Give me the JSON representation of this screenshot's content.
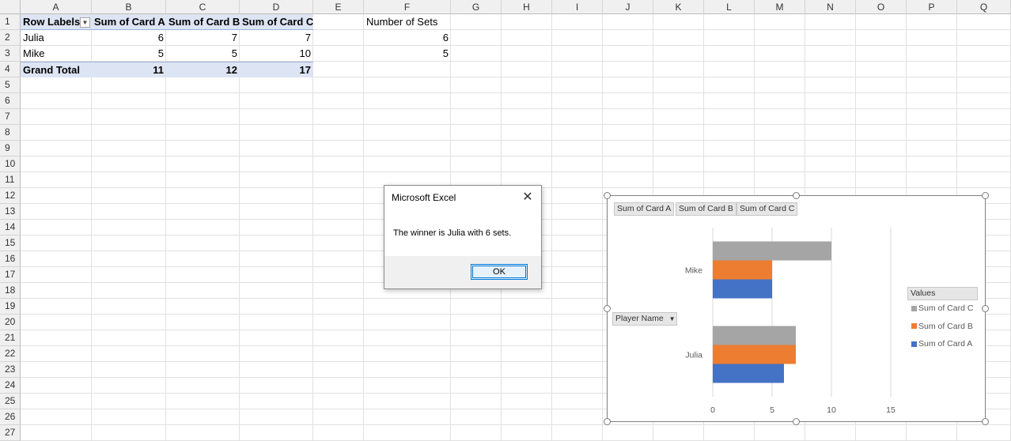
{
  "columns": [
    "A",
    "B",
    "C",
    "D",
    "E",
    "F",
    "G",
    "H",
    "I",
    "J",
    "K",
    "L",
    "M",
    "N",
    "O",
    "P",
    "Q"
  ],
  "rows": [
    "1",
    "2",
    "3",
    "4",
    "5",
    "6",
    "7",
    "8",
    "9",
    "10",
    "11",
    "12",
    "13",
    "14",
    "15",
    "16",
    "17",
    "18",
    "19",
    "20",
    "21",
    "22",
    "23",
    "24",
    "25",
    "26",
    "27"
  ],
  "pivot": {
    "headers": [
      "Row Labels",
      "Sum of Card A",
      "Sum of Card B",
      "Sum of Card C"
    ],
    "rows": [
      {
        "label": "Julia",
        "a": "6",
        "b": "7",
        "c": "7"
      },
      {
        "label": "Mike",
        "a": "5",
        "b": "5",
        "c": "10"
      }
    ],
    "total": {
      "label": "Grand Total",
      "a": "11",
      "b": "12",
      "c": "17"
    }
  },
  "sets": {
    "header": "Number of Sets",
    "values": [
      "6",
      "5"
    ]
  },
  "dialog": {
    "title": "Microsoft Excel",
    "message": "The winner is Julia with 6 sets.",
    "ok_label": "OK",
    "close_icon": "close-icon"
  },
  "chart_field_buttons": {
    "values": [
      "Sum of Card A",
      "Sum of Card B",
      "Sum of Card C"
    ],
    "axis": "Player Name",
    "legend_title": "Values"
  },
  "chart_data": {
    "type": "bar",
    "orientation": "horizontal",
    "categories": [
      "Julia",
      "Mike"
    ],
    "series": [
      {
        "name": "Sum of Card A",
        "color": "#4472c4",
        "values": [
          6,
          5
        ]
      },
      {
        "name": "Sum of Card B",
        "color": "#ed7d31",
        "values": [
          7,
          5
        ]
      },
      {
        "name": "Sum of Card C",
        "color": "#a5a5a5",
        "values": [
          7,
          10
        ]
      }
    ],
    "xlim": [
      0,
      15
    ],
    "xticks": [
      "0",
      "5",
      "10",
      "15"
    ],
    "grid": true,
    "legend": "right"
  }
}
